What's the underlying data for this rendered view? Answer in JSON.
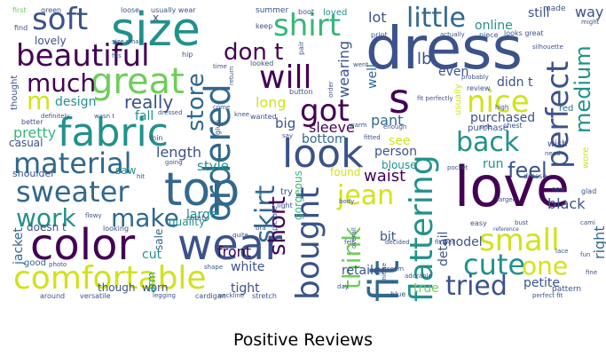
{
  "caption": "Positive Reviews",
  "colors": {
    "purple": "#440154",
    "indigo": "#3b528b",
    "blue": "#31688e",
    "teal": "#21918c",
    "green": "#35b779",
    "lime": "#6ece58",
    "yellow": "#d2e21b",
    "bright_yellow": "#fde725"
  },
  "words": [
    {
      "text": "dress"
    },
    {
      "text": "love"
    },
    {
      "text": "size"
    },
    {
      "text": "top"
    },
    {
      "text": "color"
    },
    {
      "text": "wear"
    },
    {
      "text": "fabric"
    },
    {
      "text": "great"
    },
    {
      "text": "fit"
    },
    {
      "text": "look"
    },
    {
      "text": "comfortable"
    },
    {
      "text": "soft"
    },
    {
      "text": "beautiful"
    },
    {
      "text": "ordered"
    },
    {
      "text": "shirt"
    },
    {
      "text": "material"
    },
    {
      "text": "sweater"
    },
    {
      "text": "perfect"
    },
    {
      "text": "flattering"
    },
    {
      "text": "bought"
    },
    {
      "text": "small"
    },
    {
      "text": "cute"
    },
    {
      "text": "little"
    },
    {
      "text": "s"
    },
    {
      "text": "will"
    },
    {
      "text": "got"
    },
    {
      "text": "don t"
    },
    {
      "text": "nice"
    },
    {
      "text": "back"
    },
    {
      "text": "skirt"
    },
    {
      "text": "work"
    },
    {
      "text": "make"
    },
    {
      "text": "much"
    },
    {
      "text": "jean"
    },
    {
      "text": "think"
    },
    {
      "text": "one"
    },
    {
      "text": "tried"
    },
    {
      "text": "store"
    },
    {
      "text": "feel"
    },
    {
      "text": "medium"
    },
    {
      "text": "short"
    },
    {
      "text": "m"
    },
    {
      "text": "really"
    },
    {
      "text": "sleeve"
    },
    {
      "text": "pretty"
    },
    {
      "text": "length"
    },
    {
      "text": "style"
    },
    {
      "text": "large"
    },
    {
      "text": "front"
    },
    {
      "text": "white"
    },
    {
      "text": "tight"
    },
    {
      "text": "model"
    },
    {
      "text": "petite"
    },
    {
      "text": "true"
    },
    {
      "text": "black"
    },
    {
      "text": "purchased"
    },
    {
      "text": "waist"
    },
    {
      "text": "run"
    },
    {
      "text": "way"
    },
    {
      "text": "still"
    },
    {
      "text": "lot"
    },
    {
      "text": "online"
    },
    {
      "text": "lb"
    },
    {
      "text": "even"
    },
    {
      "text": "didn t"
    },
    {
      "text": "pant"
    },
    {
      "text": "bit"
    },
    {
      "text": "bottom"
    },
    {
      "text": "long"
    },
    {
      "text": "big"
    },
    {
      "text": "design"
    },
    {
      "text": "fall"
    },
    {
      "text": "wearing"
    },
    {
      "text": "see"
    },
    {
      "text": "person"
    },
    {
      "text": "blouse"
    },
    {
      "text": "retailer"
    },
    {
      "text": "detail"
    },
    {
      "text": "right"
    },
    {
      "text": "jacket"
    },
    {
      "text": "sale"
    },
    {
      "text": "cut"
    },
    {
      "text": "worn"
    },
    {
      "text": "quality"
    },
    {
      "text": "saw"
    },
    {
      "text": "though"
    },
    {
      "text": "doesn t"
    },
    {
      "text": "arm"
    },
    {
      "text": "gorgeous"
    },
    {
      "text": "well"
    },
    {
      "text": "thought"
    },
    {
      "text": "casual"
    },
    {
      "text": "shoulder"
    },
    {
      "text": "good"
    },
    {
      "text": "lovely"
    },
    {
      "text": "find"
    },
    {
      "text": "first"
    },
    {
      "text": "green"
    },
    {
      "text": "loose"
    },
    {
      "text": "usually wear"
    },
    {
      "text": "summer"
    },
    {
      "text": "boot"
    },
    {
      "text": "loved"
    },
    {
      "text": "made"
    },
    {
      "text": "might"
    },
    {
      "text": "x"
    },
    {
      "text": "usually"
    },
    {
      "text": "enough"
    },
    {
      "text": "purchase"
    },
    {
      "text": "wish"
    },
    {
      "text": "wore"
    },
    {
      "text": "glad"
    },
    {
      "text": "red"
    },
    {
      "text": "review"
    },
    {
      "text": "print"
    },
    {
      "text": "piece"
    },
    {
      "text": "looks great"
    },
    {
      "text": "keep"
    },
    {
      "text": "pair"
    },
    {
      "text": "looked"
    },
    {
      "text": "button"
    },
    {
      "text": "wanted"
    },
    {
      "text": "give"
    },
    {
      "text": "hip"
    },
    {
      "text": "better"
    },
    {
      "text": "wasn t"
    },
    {
      "text": "definitely"
    },
    {
      "text": "thin"
    },
    {
      "text": "going"
    },
    {
      "text": "comfy"
    },
    {
      "text": "flowy"
    },
    {
      "text": "looking"
    },
    {
      "text": "photo"
    },
    {
      "text": "versatile"
    },
    {
      "text": "around"
    },
    {
      "text": "legging"
    },
    {
      "text": "cardigan"
    },
    {
      "text": "stretch"
    },
    {
      "text": "day"
    },
    {
      "text": "felt"
    },
    {
      "text": "decided"
    },
    {
      "text": "seem"
    },
    {
      "text": "blue"
    },
    {
      "text": "adorable"
    },
    {
      "text": "easy"
    },
    {
      "text": "reference"
    },
    {
      "text": "pattern"
    },
    {
      "text": "fine"
    },
    {
      "text": "fun"
    },
    {
      "text": "lace"
    },
    {
      "text": "bust"
    },
    {
      "text": "fitted"
    },
    {
      "text": "chest"
    },
    {
      "text": "side"
    },
    {
      "text": "pocket"
    },
    {
      "text": "dresse"
    },
    {
      "text": "found"
    },
    {
      "text": "try"
    },
    {
      "text": "light"
    },
    {
      "text": "picture"
    },
    {
      "text": "knee"
    },
    {
      "text": "time"
    },
    {
      "text": "come"
    },
    {
      "text": "dressed"
    },
    {
      "text": "hit"
    },
    {
      "text": "overall"
    },
    {
      "text": "unique"
    },
    {
      "text": "order"
    },
    {
      "text": "went"
    },
    {
      "text": "fit perfectly"
    },
    {
      "text": "probably"
    },
    {
      "text": "actually"
    },
    {
      "text": "body"
    },
    {
      "text": "return"
    },
    {
      "text": "bra"
    },
    {
      "text": "quite"
    },
    {
      "text": "now"
    },
    {
      "text": "need"
    },
    {
      "text": "shape"
    },
    {
      "text": "neckline"
    },
    {
      "text": "size small"
    },
    {
      "text": "fits"
    },
    {
      "text": "say"
    },
    {
      "text": "silhouette"
    },
    {
      "text": "cami"
    },
    {
      "text": "fit well"
    },
    {
      "text": "larger"
    },
    {
      "text": "warm"
    },
    {
      "text": "high"
    },
    {
      "text": "perfect fit"
    }
  ]
}
